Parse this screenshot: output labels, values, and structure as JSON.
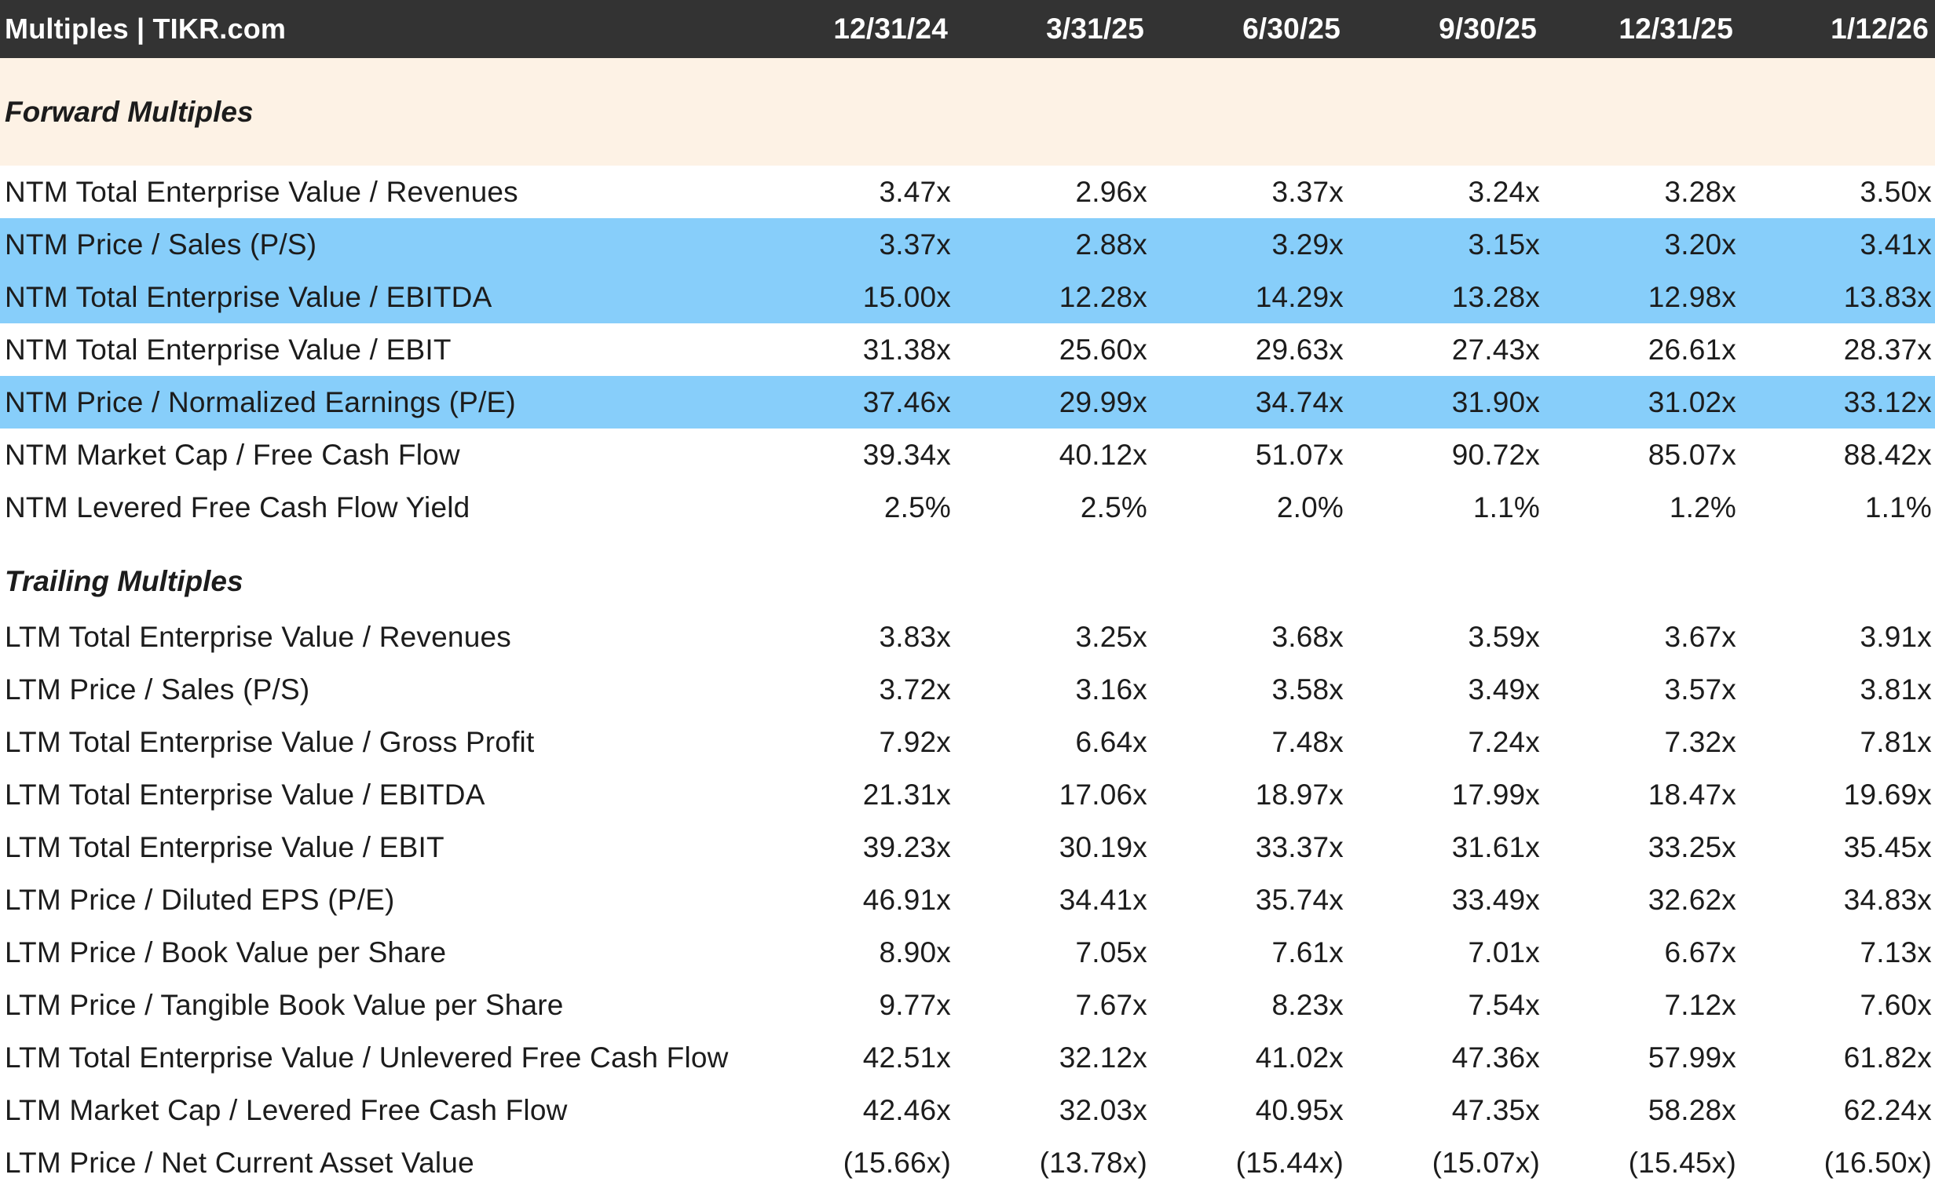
{
  "header": {
    "title": "Multiples | TIKR.com",
    "columns": [
      "12/31/24",
      "3/31/25",
      "6/30/25",
      "9/30/25",
      "12/31/25",
      "1/12/26"
    ]
  },
  "sections": {
    "forward_title": "Forward Multiples",
    "trailing_title": "Trailing Multiples"
  },
  "forward_rows": [
    {
      "label": "NTM Total Enterprise Value / Revenues",
      "values": [
        "3.47x",
        "2.96x",
        "3.37x",
        "3.24x",
        "3.28x",
        "3.50x"
      ],
      "highlighted": false
    },
    {
      "label": "NTM Price / Sales (P/S)",
      "values": [
        "3.37x",
        "2.88x",
        "3.29x",
        "3.15x",
        "3.20x",
        "3.41x"
      ],
      "highlighted": true
    },
    {
      "label": "NTM Total Enterprise Value / EBITDA",
      "values": [
        "15.00x",
        "12.28x",
        "14.29x",
        "13.28x",
        "12.98x",
        "13.83x"
      ],
      "highlighted": true
    },
    {
      "label": "NTM Total Enterprise Value / EBIT",
      "values": [
        "31.38x",
        "25.60x",
        "29.63x",
        "27.43x",
        "26.61x",
        "28.37x"
      ],
      "highlighted": false
    },
    {
      "label": "NTM Price / Normalized Earnings (P/E)",
      "values": [
        "37.46x",
        "29.99x",
        "34.74x",
        "31.90x",
        "31.02x",
        "33.12x"
      ],
      "highlighted": true
    },
    {
      "label": "NTM Market Cap / Free Cash Flow",
      "values": [
        "39.34x",
        "40.12x",
        "51.07x",
        "90.72x",
        "85.07x",
        "88.42x"
      ],
      "highlighted": false
    },
    {
      "label": "NTM Levered Free Cash Flow Yield",
      "values": [
        "2.5%",
        "2.5%",
        "2.0%",
        "1.1%",
        "1.2%",
        "1.1%"
      ],
      "highlighted": false
    }
  ],
  "trailing_rows": [
    {
      "label": "LTM Total Enterprise Value / Revenues",
      "values": [
        "3.83x",
        "3.25x",
        "3.68x",
        "3.59x",
        "3.67x",
        "3.91x"
      ]
    },
    {
      "label": "LTM Price / Sales (P/S)",
      "values": [
        "3.72x",
        "3.16x",
        "3.58x",
        "3.49x",
        "3.57x",
        "3.81x"
      ]
    },
    {
      "label": "LTM Total Enterprise Value / Gross Profit",
      "values": [
        "7.92x",
        "6.64x",
        "7.48x",
        "7.24x",
        "7.32x",
        "7.81x"
      ]
    },
    {
      "label": "LTM Total Enterprise Value / EBITDA",
      "values": [
        "21.31x",
        "17.06x",
        "18.97x",
        "17.99x",
        "18.47x",
        "19.69x"
      ]
    },
    {
      "label": "LTM Total Enterprise Value / EBIT",
      "values": [
        "39.23x",
        "30.19x",
        "33.37x",
        "31.61x",
        "33.25x",
        "35.45x"
      ]
    },
    {
      "label": "LTM Price / Diluted EPS (P/E)",
      "values": [
        "46.91x",
        "34.41x",
        "35.74x",
        "33.49x",
        "32.62x",
        "34.83x"
      ]
    },
    {
      "label": "LTM Price / Book Value per Share",
      "values": [
        "8.90x",
        "7.05x",
        "7.61x",
        "7.01x",
        "6.67x",
        "7.13x"
      ]
    },
    {
      "label": "LTM Price / Tangible Book Value per Share",
      "values": [
        "9.77x",
        "7.67x",
        "8.23x",
        "7.54x",
        "7.12x",
        "7.60x"
      ]
    },
    {
      "label": "LTM Total Enterprise Value / Unlevered Free Cash Flow",
      "values": [
        "42.51x",
        "32.12x",
        "41.02x",
        "47.36x",
        "57.99x",
        "61.82x"
      ]
    },
    {
      "label": "LTM Market Cap / Levered Free Cash Flow",
      "values": [
        "42.46x",
        "32.03x",
        "40.95x",
        "47.35x",
        "58.28x",
        "62.24x"
      ]
    },
    {
      "label": "LTM Price / Net Current Asset Value",
      "values": [
        "(15.66x)",
        "(13.78x)",
        "(15.44x)",
        "(15.07x)",
        "(15.45x)",
        "(16.50x)"
      ]
    }
  ],
  "colors": {
    "header_bg": "#333333",
    "forward_section_bg": "#fdf2e5",
    "highlight_bg": "#87cefa"
  }
}
